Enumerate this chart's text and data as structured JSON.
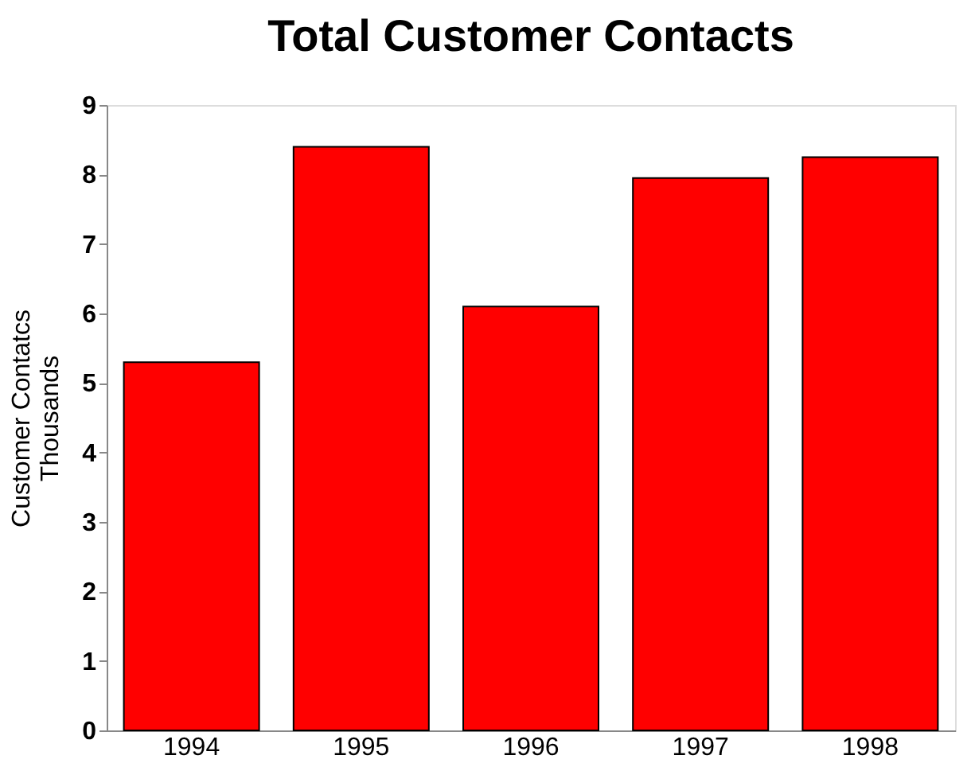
{
  "chart_data": {
    "type": "bar",
    "title": "Total Customer Contacts",
    "ylabel": "Customer Contatcs\nThousands",
    "categories": [
      "1994",
      "1995",
      "1996",
      "1997",
      "1998"
    ],
    "values": [
      5.3,
      8.4,
      6.1,
      7.95,
      8.25
    ],
    "color": "#ff0000",
    "ylim": [
      0,
      9
    ],
    "yticks": [
      0,
      1,
      2,
      3,
      4,
      5,
      6,
      7,
      8,
      9
    ],
    "grid": false
  }
}
